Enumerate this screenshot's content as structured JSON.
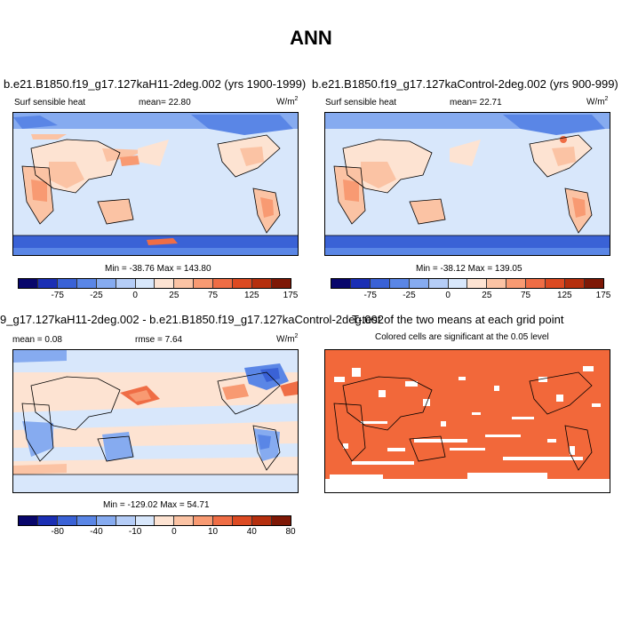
{
  "title": "ANN",
  "panels": [
    {
      "title": "b.e21.B1850.f19_g17.127kaH11-2deg.002 (yrs 1900-1999)",
      "left_label": "Surf sensible heat",
      "center_label": "mean=  22.80",
      "units_base": "W/m",
      "units_exp": "2",
      "minmax": "Min = -38.76 Max = 143.80",
      "colorbar_ticks": [
        "-75",
        "-25",
        "0",
        "25",
        "75",
        "125",
        "175"
      ]
    },
    {
      "title": "b.e21.B1850.f19_g17.127kaControl-2deg.002 (yrs 900-999)",
      "left_label": "Surf sensible heat",
      "center_label": "mean=  22.71",
      "units_base": "W/m",
      "units_exp": "2",
      "minmax": "Min = -38.12 Max = 139.05",
      "colorbar_ticks": [
        "-75",
        "-25",
        "0",
        "25",
        "75",
        "125",
        "175"
      ]
    },
    {
      "title": "9_g17.127kaH11-2deg.002 - b.e21.B1850.f19_g17.127kaControl-2deg.002",
      "left_label": "mean =  0.08",
      "center_label": "rmse =  7.64",
      "units_base": "W/m",
      "units_exp": "2",
      "minmax": "Min = -129.02 Max = 54.71",
      "colorbar_ticks": [
        "-80",
        "-40",
        "-10",
        "0",
        "10",
        "40",
        "80"
      ]
    },
    {
      "title": "T-test of the two means at each grid point",
      "subtitle": "Colored cells are significant at the 0.05 level"
    }
  ],
  "colors": {
    "scale": [
      "#08066b",
      "#1b2fb4",
      "#3a62d6",
      "#5a86e6",
      "#86abf0",
      "#b5cdf7",
      "#d8e7fb",
      "#fde3d2",
      "#fbc3a4",
      "#f89a72",
      "#ef6d45",
      "#dc4a22",
      "#b52f0e",
      "#7e1806"
    ],
    "ttest": "#f2683a"
  }
}
